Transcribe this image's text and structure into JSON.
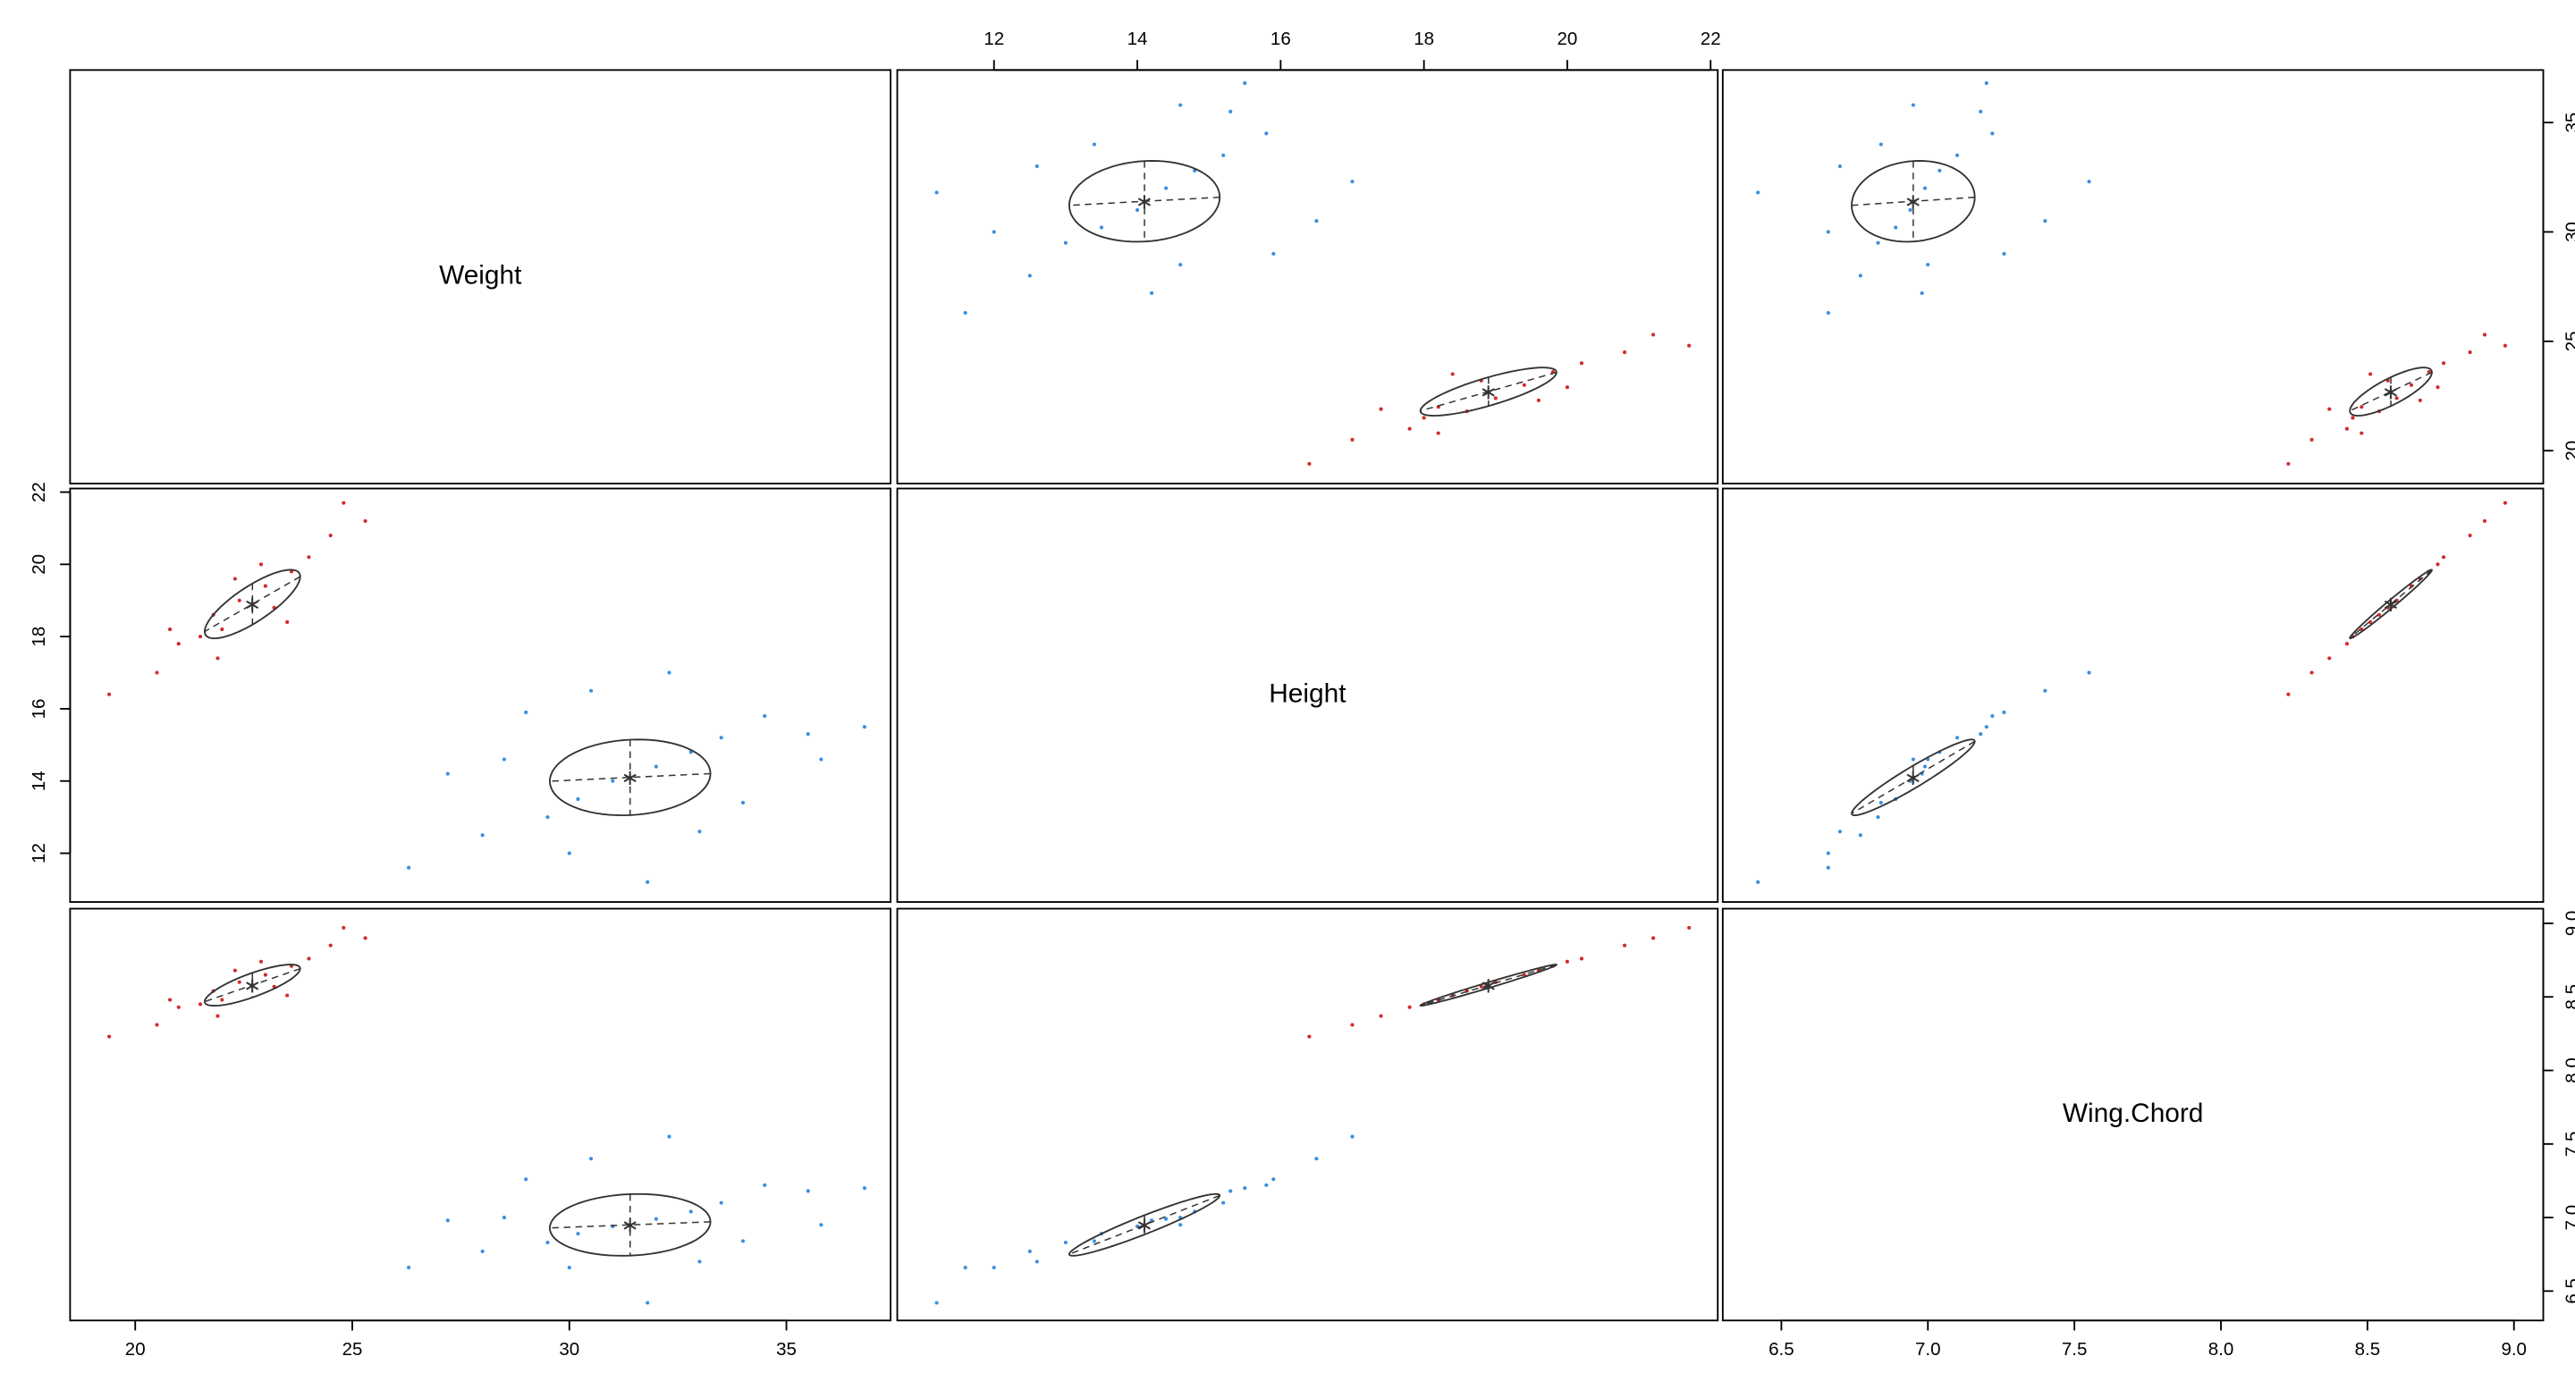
{
  "chart_data": {
    "type": "scatter-matrix",
    "variables": [
      {
        "name": "Weight",
        "lim": [
          18.5,
          37.4
        ],
        "ticks": [
          20,
          25,
          30,
          35
        ]
      },
      {
        "name": "Height",
        "lim": [
          10.65,
          22.1
        ],
        "ticks": [
          12,
          14,
          16,
          18,
          20,
          22
        ]
      },
      {
        "name": "Wing.Chord",
        "lim": [
          6.3,
          9.1
        ],
        "ticks": [
          6.5,
          {
            "value": 7,
            "label": "7.0"
          },
          7.5,
          {
            "value": 8,
            "label": "8.0"
          },
          8.5,
          {
            "value": 9,
            "label": "9.0"
          }
        ]
      }
    ],
    "groups": [
      {
        "color": "#d42a2a",
        "data": [
          [
            19.4,
            20.5,
            21.0,
            21.5,
            21.8,
            22.0,
            22.4,
            22.7,
            23.0,
            23.2,
            23.6,
            24.0,
            22.3,
            21.9,
            24.5,
            25.3,
            23.5,
            20.8,
            24.8,
            22.9
          ],
          [
            16.4,
            17.0,
            17.8,
            18.0,
            18.6,
            18.2,
            19.0,
            18.9,
            19.4,
            18.8,
            19.8,
            20.2,
            19.6,
            17.4,
            20.8,
            21.2,
            18.4,
            18.2,
            21.7,
            20.0
          ],
          [
            8.23,
            8.31,
            8.43,
            8.45,
            8.54,
            8.48,
            8.6,
            8.58,
            8.65,
            8.57,
            8.71,
            8.76,
            8.68,
            8.37,
            8.85,
            8.9,
            8.51,
            8.48,
            8.97,
            8.74
          ]
        ],
        "mean": [
          22.7,
          18.9,
          8.58
        ],
        "sd": [
          1.1,
          0.95,
          0.14
        ],
        "cor": [
          0.8,
          0.8,
          0.99
        ]
      },
      {
        "color": "#3a8fdf",
        "data": [
          [
            26.3,
            28.0,
            29.5,
            30.2,
            31.0,
            31.4,
            32.0,
            32.8,
            33.5,
            34.5,
            35.5,
            36.8,
            29.0,
            30.5,
            32.3,
            30.0,
            33.0,
            34.0,
            28.5,
            31.8,
            27.2,
            35.8
          ],
          [
            11.6,
            12.5,
            13.0,
            13.5,
            14.0,
            14.1,
            14.4,
            14.8,
            15.2,
            15.8,
            15.3,
            15.5,
            15.9,
            16.5,
            17.0,
            12.0,
            12.6,
            13.4,
            14.6,
            11.2,
            14.2,
            14.6
          ],
          [
            6.66,
            6.77,
            6.83,
            6.89,
            6.94,
            6.95,
            6.99,
            7.04,
            7.1,
            7.22,
            7.18,
            7.2,
            7.26,
            7.4,
            7.55,
            6.66,
            6.7,
            6.84,
            7.0,
            6.42,
            6.98,
            6.95
          ]
        ],
        "mean": [
          31.4,
          14.1,
          6.95
        ],
        "sd": [
          1.85,
          1.05,
          0.21
        ],
        "cor": [
          0.1,
          0.1,
          0.95
        ]
      }
    ]
  }
}
